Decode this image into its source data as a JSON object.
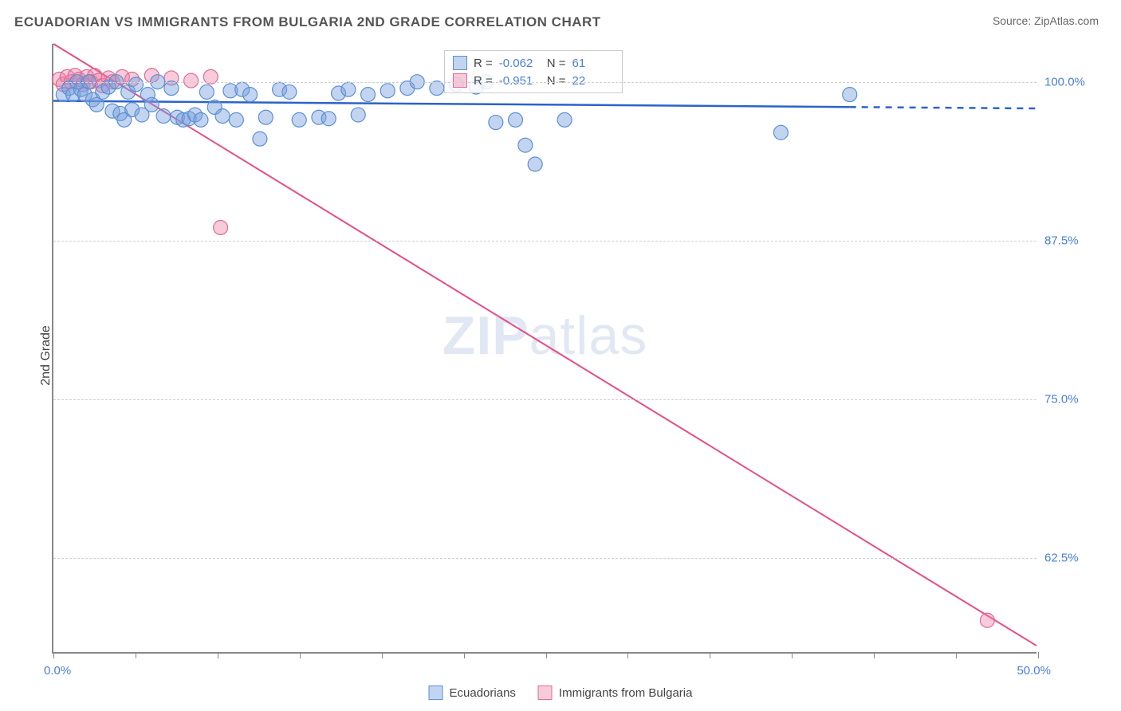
{
  "title": "ECUADORIAN VS IMMIGRANTS FROM BULGARIA 2ND GRADE CORRELATION CHART",
  "source_label": "Source: ZipAtlas.com",
  "ylabel": "2nd Grade",
  "watermark_a": "ZIP",
  "watermark_b": "atlas",
  "chart": {
    "type": "scatter",
    "xlim": [
      0,
      50
    ],
    "ylim": [
      55,
      103
    ],
    "x_start_label": "0.0%",
    "x_end_label": "50.0%",
    "x_ticks": [
      0,
      4.17,
      8.33,
      12.5,
      16.67,
      20.83,
      25,
      29.17,
      33.33,
      37.5,
      41.67,
      45.83,
      50
    ],
    "y_ticks": [
      {
        "v": 100.0,
        "label": "100.0%"
      },
      {
        "v": 87.5,
        "label": "87.5%"
      },
      {
        "v": 75.0,
        "label": "75.0%"
      },
      {
        "v": 62.5,
        "label": "62.5%"
      }
    ],
    "grid_color": "#d0d0d0",
    "background_color": "#ffffff",
    "series": [
      {
        "name": "Ecuadorians",
        "color_fill": "rgba(120,160,220,0.45)",
        "color_stroke": "#5b8fd6",
        "marker_radius": 9,
        "regression": {
          "x1": 0,
          "y1": 98.5,
          "x2": 50,
          "y2": 97.9,
          "solid_until_x": 40.5,
          "stroke": "#2b63c9",
          "stroke_width": 2.5
        },
        "stats": {
          "R": "-0.062",
          "N": "61"
        },
        "points": [
          [
            0.5,
            99.0
          ],
          [
            0.8,
            99.5
          ],
          [
            1.0,
            99.0
          ],
          [
            1.2,
            100.0
          ],
          [
            1.4,
            99.4
          ],
          [
            1.6,
            99.0
          ],
          [
            1.8,
            100.0
          ],
          [
            2.0,
            98.6
          ],
          [
            2.2,
            98.2
          ],
          [
            2.5,
            99.2
          ],
          [
            2.8,
            99.6
          ],
          [
            3.0,
            97.7
          ],
          [
            3.2,
            100.0
          ],
          [
            3.4,
            97.5
          ],
          [
            3.6,
            97.0
          ],
          [
            3.8,
            99.2
          ],
          [
            4.0,
            97.8
          ],
          [
            4.2,
            99.8
          ],
          [
            4.5,
            97.4
          ],
          [
            4.8,
            99.0
          ],
          [
            5.0,
            98.2
          ],
          [
            5.3,
            100.0
          ],
          [
            5.6,
            97.3
          ],
          [
            6.0,
            99.5
          ],
          [
            6.3,
            97.2
          ],
          [
            6.6,
            97.0
          ],
          [
            6.9,
            97.1
          ],
          [
            7.2,
            97.4
          ],
          [
            7.5,
            97.0
          ],
          [
            7.8,
            99.2
          ],
          [
            8.2,
            98.0
          ],
          [
            8.6,
            97.3
          ],
          [
            9.0,
            99.3
          ],
          [
            9.3,
            97.0
          ],
          [
            9.6,
            99.4
          ],
          [
            10.0,
            99.0
          ],
          [
            10.5,
            95.5
          ],
          [
            10.8,
            97.2
          ],
          [
            11.5,
            99.4
          ],
          [
            12.0,
            99.2
          ],
          [
            12.5,
            97.0
          ],
          [
            13.5,
            97.2
          ],
          [
            14.0,
            97.1
          ],
          [
            14.5,
            99.1
          ],
          [
            15.0,
            99.4
          ],
          [
            15.5,
            97.4
          ],
          [
            16.0,
            99.0
          ],
          [
            17.0,
            99.3
          ],
          [
            18.0,
            99.5
          ],
          [
            18.5,
            100.0
          ],
          [
            19.5,
            99.5
          ],
          [
            20.5,
            99.8
          ],
          [
            21.5,
            99.6
          ],
          [
            22.0,
            100.0
          ],
          [
            22.5,
            96.8
          ],
          [
            23.5,
            97.0
          ],
          [
            24.0,
            95.0
          ],
          [
            24.5,
            93.5
          ],
          [
            26.0,
            97.0
          ],
          [
            37.0,
            96.0
          ],
          [
            40.5,
            99.0
          ]
        ]
      },
      {
        "name": "Immigrants from Bulgaria",
        "color_fill": "rgba(235,130,165,0.42)",
        "color_stroke": "#e16a98",
        "marker_radius": 9,
        "regression": {
          "x1": 0,
          "y1": 103.0,
          "x2": 50,
          "y2": 55.5,
          "solid_until_x": 50,
          "stroke": "#e64d88",
          "stroke_width": 2
        },
        "stats": {
          "R": "-0.951",
          "N": "22"
        },
        "points": [
          [
            0.3,
            100.2
          ],
          [
            0.5,
            99.8
          ],
          [
            0.7,
            100.4
          ],
          [
            0.9,
            100.0
          ],
          [
            1.1,
            100.5
          ],
          [
            1.3,
            100.2
          ],
          [
            1.5,
            99.8
          ],
          [
            1.7,
            100.4
          ],
          [
            1.9,
            100.0
          ],
          [
            2.1,
            100.5
          ],
          [
            2.3,
            100.1
          ],
          [
            2.5,
            99.7
          ],
          [
            2.8,
            100.3
          ],
          [
            3.0,
            100.0
          ],
          [
            3.5,
            100.4
          ],
          [
            4.0,
            100.2
          ],
          [
            5.0,
            100.5
          ],
          [
            6.0,
            100.3
          ],
          [
            7.0,
            100.1
          ],
          [
            8.0,
            100.4
          ],
          [
            8.5,
            88.5
          ],
          [
            47.5,
            57.5
          ]
        ]
      }
    ],
    "legend_bottom": true,
    "stats_box_pos": "top-center"
  }
}
